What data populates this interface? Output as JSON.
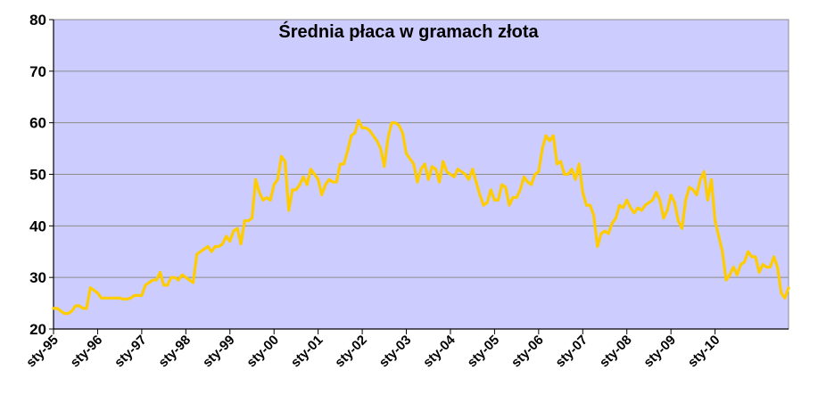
{
  "chart_data": {
    "type": "line",
    "title": "Średnia płaca w gramach złota",
    "xlabel": "",
    "ylabel": "",
    "ylim": [
      20,
      80
    ],
    "yticks": [
      20,
      30,
      40,
      50,
      60,
      70,
      80
    ],
    "xticks": [
      "sty-95",
      "sty-96",
      "sty-97",
      "sty-98",
      "sty-99",
      "sty-00",
      "sty-01",
      "sty-02",
      "sty-03",
      "sty-04",
      "sty-05",
      "sty-06",
      "sty-07",
      "sty-08",
      "sty-09",
      "sty-10"
    ],
    "x_start": "1995-01",
    "x_end": "2010-08",
    "grid": {
      "horizontal": true,
      "vertical": false
    },
    "legend": "none",
    "colors": {
      "plot_background": "#ccccff",
      "line": "#ffcc00",
      "grid": "#8c8c8c",
      "axis": "#000000"
    },
    "series": [
      {
        "values": [
          24,
          24,
          23.5,
          23,
          23,
          23.5,
          24.5,
          24.5,
          24,
          24,
          28,
          27.5,
          27,
          26,
          26,
          26,
          26,
          26,
          26,
          25.8,
          25.8,
          26,
          26.5,
          26.5,
          26.5,
          28.5,
          29,
          29.5,
          29.5,
          31,
          28.5,
          28.5,
          30,
          30,
          29.5,
          30.5,
          30,
          29.5,
          29,
          34.5,
          35,
          35.5,
          36,
          35,
          36,
          36,
          36.5,
          38,
          37,
          39,
          39.5,
          36.5,
          41,
          41,
          41.5,
          49,
          46.5,
          45,
          45.5,
          45,
          48,
          49,
          53.5,
          52.5,
          43,
          47,
          47,
          48,
          49.5,
          48,
          51,
          50,
          49,
          46,
          48,
          49,
          48.5,
          48.5,
          52,
          52,
          54.5,
          57.5,
          58,
          60.5,
          59,
          59,
          58.5,
          57.5,
          56.5,
          55,
          51.5,
          57,
          60,
          60,
          59.5,
          58,
          54,
          53,
          52,
          48.5,
          51,
          52,
          49,
          51.5,
          51,
          48.5,
          52.5,
          50.5,
          50,
          49.5,
          51,
          50.5,
          50,
          49,
          51,
          48.5,
          46,
          44,
          44.5,
          47,
          45,
          45,
          48,
          47.5,
          44,
          45.5,
          45.5,
          47,
          49.5,
          48.5,
          48,
          50,
          50.5,
          55,
          57.5,
          56.5,
          57.5,
          52,
          52.5,
          50,
          50,
          51,
          49,
          52,
          46.5,
          44,
          44,
          42,
          36,
          38.5,
          39,
          38.5,
          40.5,
          41.5,
          44,
          43.5,
          45,
          43.5,
          42.5,
          43.5,
          43,
          44,
          44.5,
          45,
          46.5,
          45,
          41.5,
          43,
          46,
          44.5,
          41,
          39.5,
          45,
          47.5,
          47,
          46,
          49,
          50.5,
          45,
          49,
          41,
          38,
          35,
          29.5,
          30.5,
          32,
          30.5,
          32.5,
          33,
          35,
          34,
          34,
          31,
          32.5,
          32,
          32,
          34,
          32,
          27,
          26,
          28
        ]
      }
    ]
  }
}
